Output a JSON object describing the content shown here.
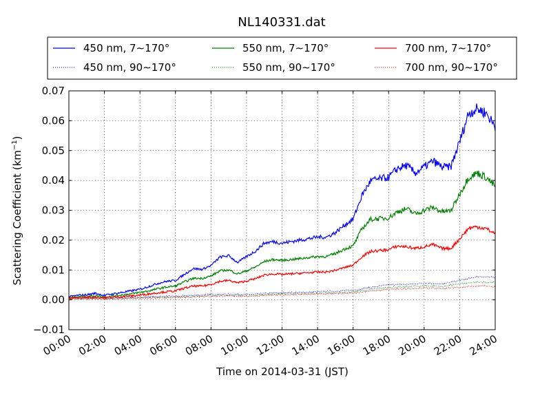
{
  "chart_data": {
    "type": "line",
    "title": "NL140331.dat",
    "xlabel": "Time on 2014-03-31 (JST)",
    "ylabel": "Scattering Coefficient (km",
    "ylabel_exponent": "−1",
    "ylabel_suffix": ")",
    "xlim": [
      0,
      24
    ],
    "ylim": [
      -0.01,
      0.07
    ],
    "grid": true,
    "legend_placement": "top",
    "x_ticks": [
      0,
      2,
      4,
      6,
      8,
      10,
      12,
      14,
      16,
      18,
      20,
      22,
      24
    ],
    "x_tick_labels": [
      "00:00",
      "02:00",
      "04:00",
      "06:00",
      "08:00",
      "10:00",
      "12:00",
      "14:00",
      "16:00",
      "18:00",
      "20:00",
      "22:00",
      "24:00"
    ],
    "y_ticks": [
      -0.01,
      0.0,
      0.01,
      0.02,
      0.03,
      0.04,
      0.05,
      0.06,
      0.07
    ],
    "y_tick_labels": [
      "−0.01",
      "0.00",
      "0.01",
      "0.02",
      "0.03",
      "0.04",
      "0.05",
      "0.06",
      "0.07"
    ],
    "x_units": "hours",
    "series": [
      {
        "name": "450 nm, 7∼170°",
        "color": "#0000ff",
        "style": "solid",
        "x": [
          0,
          0.5,
          1,
          1.5,
          2,
          2.5,
          3,
          3.5,
          4,
          4.5,
          5,
          5.5,
          6,
          6.5,
          7,
          7.5,
          8,
          8.5,
          9,
          9.5,
          10,
          10.5,
          11,
          11.5,
          12,
          12.5,
          13,
          13.5,
          14,
          14.5,
          15,
          15.5,
          16,
          16.5,
          17,
          17.5,
          18,
          18.5,
          19,
          19.5,
          20,
          20.5,
          21,
          21.5,
          22,
          22.5,
          23,
          23.5,
          24
        ],
        "y": [
          0.001,
          0.0015,
          0.0017,
          0.0022,
          0.0015,
          0.002,
          0.0025,
          0.003,
          0.0035,
          0.0045,
          0.0055,
          0.0062,
          0.0065,
          0.0085,
          0.0105,
          0.0102,
          0.0115,
          0.0143,
          0.0148,
          0.0125,
          0.0145,
          0.0163,
          0.019,
          0.0195,
          0.019,
          0.0195,
          0.02,
          0.0205,
          0.021,
          0.021,
          0.0225,
          0.025,
          0.027,
          0.035,
          0.04,
          0.0405,
          0.041,
          0.044,
          0.045,
          0.0425,
          0.0445,
          0.0465,
          0.0445,
          0.0445,
          0.053,
          0.0625,
          0.064,
          0.0625,
          0.058
        ]
      },
      {
        "name": "550 nm, 7∼170°",
        "color": "#008000",
        "style": "solid",
        "x": [
          0,
          0.5,
          1,
          1.5,
          2,
          2.5,
          3,
          3.5,
          4,
          4.5,
          5,
          5.5,
          6,
          6.5,
          7,
          7.5,
          8,
          8.5,
          9,
          9.5,
          10,
          10.5,
          11,
          11.5,
          12,
          12.5,
          13,
          13.5,
          14,
          14.5,
          15,
          15.5,
          16,
          16.5,
          17,
          17.5,
          18,
          18.5,
          19,
          19.5,
          20,
          20.5,
          21,
          21.5,
          22,
          22.5,
          23,
          23.5,
          24
        ],
        "y": [
          0.0007,
          0.001,
          0.0012,
          0.0014,
          0.001,
          0.0013,
          0.0017,
          0.002,
          0.0025,
          0.003,
          0.0037,
          0.0043,
          0.0046,
          0.006,
          0.0072,
          0.0072,
          0.008,
          0.0097,
          0.01,
          0.0087,
          0.0097,
          0.011,
          0.0128,
          0.0135,
          0.0132,
          0.0135,
          0.0138,
          0.0142,
          0.0145,
          0.0145,
          0.0155,
          0.017,
          0.018,
          0.0238,
          0.027,
          0.0272,
          0.0275,
          0.0295,
          0.0305,
          0.0288,
          0.03,
          0.031,
          0.0295,
          0.0298,
          0.0355,
          0.041,
          0.0425,
          0.041,
          0.038
        ]
      },
      {
        "name": "700 nm, 7∼170°",
        "color": "#ff0000",
        "style": "solid",
        "x": [
          0,
          0.5,
          1,
          1.5,
          2,
          2.5,
          3,
          3.5,
          4,
          4.5,
          5,
          5.5,
          6,
          6.5,
          7,
          7.5,
          8,
          8.5,
          9,
          9.5,
          10,
          10.5,
          11,
          11.5,
          12,
          12.5,
          13,
          13.5,
          14,
          14.5,
          15,
          15.5,
          16,
          16.5,
          17,
          17.5,
          18,
          18.5,
          19,
          19.5,
          20,
          20.5,
          21,
          21.5,
          22,
          22.5,
          23,
          23.5,
          24
        ],
        "y": [
          0.0005,
          0.0007,
          0.0008,
          0.0009,
          0.0007,
          0.0009,
          0.0011,
          0.0013,
          0.0016,
          0.002,
          0.0024,
          0.0027,
          0.003,
          0.0039,
          0.0046,
          0.0046,
          0.0052,
          0.0062,
          0.0065,
          0.0057,
          0.0063,
          0.0071,
          0.0083,
          0.0087,
          0.0085,
          0.0087,
          0.0089,
          0.0091,
          0.0093,
          0.0093,
          0.0099,
          0.0108,
          0.0116,
          0.0145,
          0.0162,
          0.0165,
          0.0168,
          0.018,
          0.0178,
          0.0172,
          0.0178,
          0.0185,
          0.0172,
          0.0172,
          0.0205,
          0.024,
          0.0245,
          0.0238,
          0.0222
        ]
      },
      {
        "name": "450 nm, 90∼170°",
        "color": "#0000ff",
        "style": "dotted",
        "x": [
          0,
          1,
          2,
          3,
          4,
          5,
          6,
          7,
          8,
          9,
          10,
          11,
          12,
          13,
          14,
          15,
          16,
          17,
          18,
          19,
          20,
          21,
          22,
          23,
          24
        ],
        "y": [
          0.0005,
          0.0006,
          0.0005,
          0.0007,
          0.0009,
          0.0011,
          0.0012,
          0.0015,
          0.0018,
          0.0019,
          0.0017,
          0.0021,
          0.0024,
          0.0025,
          0.0027,
          0.0029,
          0.0033,
          0.0042,
          0.005,
          0.0052,
          0.0056,
          0.0053,
          0.0065,
          0.0078,
          0.0075
        ]
      },
      {
        "name": "550 nm, 90∼170°",
        "color": "#008000",
        "style": "dotted",
        "x": [
          0,
          1,
          2,
          3,
          4,
          5,
          6,
          7,
          8,
          9,
          10,
          11,
          12,
          13,
          14,
          15,
          16,
          17,
          18,
          19,
          20,
          21,
          22,
          23,
          24
        ],
        "y": [
          0.0004,
          0.0005,
          0.0004,
          0.0006,
          0.0007,
          0.0008,
          0.0009,
          0.0012,
          0.0014,
          0.0015,
          0.0014,
          0.0017,
          0.002,
          0.0021,
          0.0022,
          0.0024,
          0.0027,
          0.0035,
          0.0042,
          0.0044,
          0.0047,
          0.0045,
          0.0053,
          0.006,
          0.0058
        ]
      },
      {
        "name": "700 nm, 90∼170°",
        "color": "#ff0000",
        "style": "dotted",
        "x": [
          0,
          1,
          2,
          3,
          4,
          5,
          6,
          7,
          8,
          9,
          10,
          11,
          12,
          13,
          14,
          15,
          16,
          17,
          18,
          19,
          20,
          21,
          22,
          23,
          24
        ],
        "y": [
          0.0003,
          0.0004,
          0.0003,
          0.0005,
          0.0006,
          0.0007,
          0.0008,
          0.001,
          0.0012,
          0.0013,
          0.0012,
          0.0015,
          0.0017,
          0.0018,
          0.0019,
          0.002,
          0.0022,
          0.003,
          0.0035,
          0.0037,
          0.004,
          0.0038,
          0.0043,
          0.0046,
          0.0044
        ]
      }
    ],
    "legend_order": [
      0,
      1,
      2,
      3,
      4,
      5
    ]
  }
}
